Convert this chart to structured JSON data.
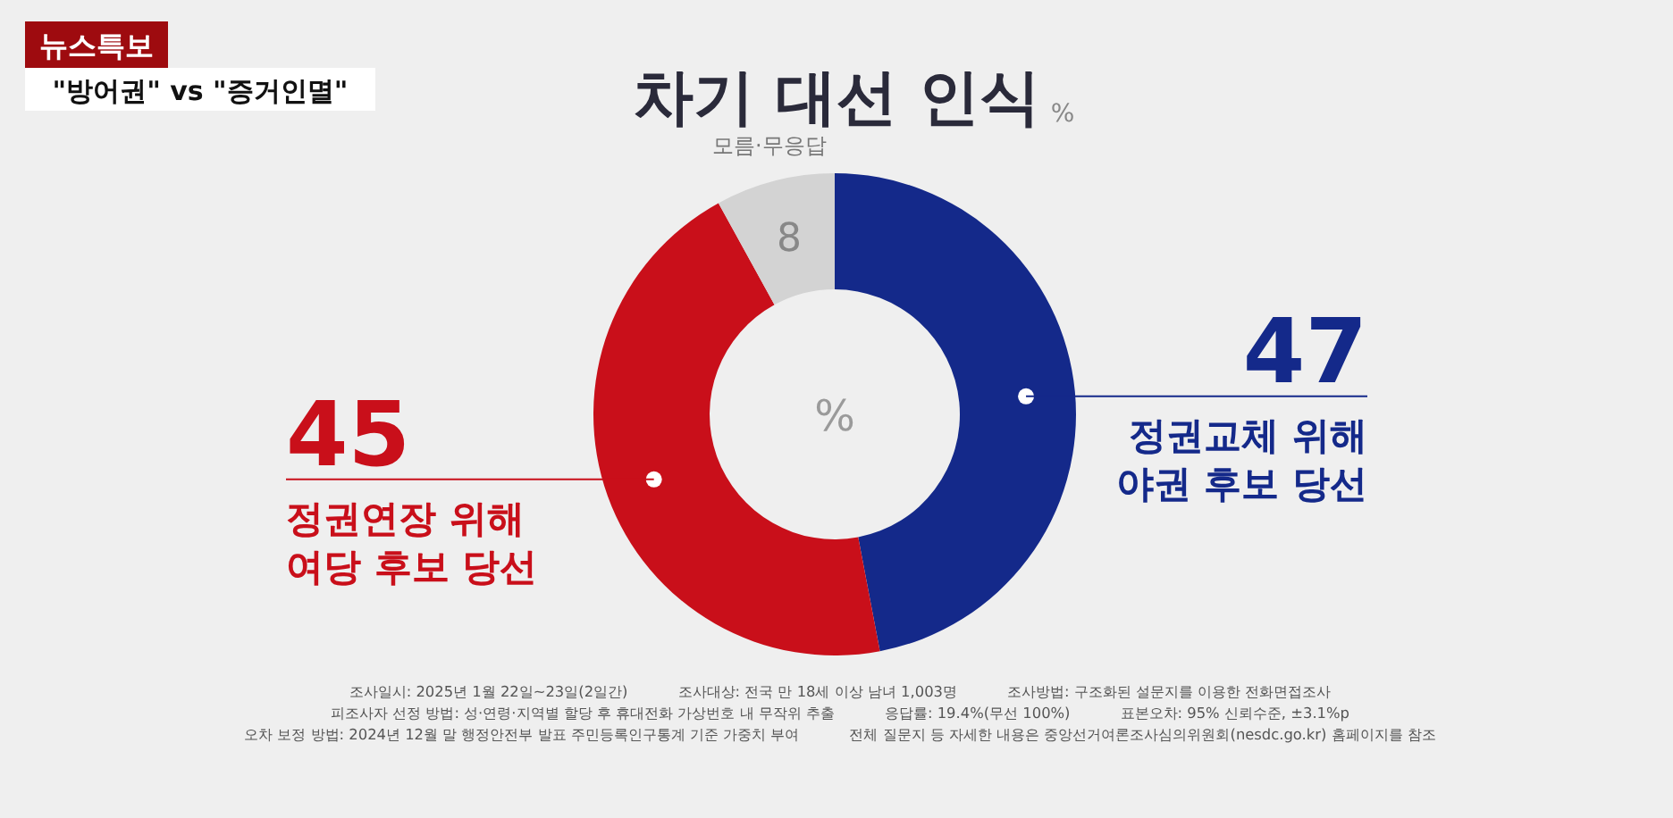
{
  "chart_data": {
    "type": "donut",
    "title": "차기 대선 인식",
    "subtitle": "%",
    "categories": [
      "정권교체 위해 야권 후보 당선",
      "정권연장 위해 여당 후보 당선",
      "모름·무응답"
    ],
    "values": [
      47,
      45,
      8
    ],
    "colors": [
      "#14298a",
      "#c90f1a",
      "#d3d3d3"
    ],
    "data_labels": true,
    "annotations": [
      "뉴스특보",
      "\"방어권\" vs \"증거인멸\"",
      "%",
      "조사일시: 2025년 1월 22일~23일(2일간)",
      "조사대상: 전국 만 18세 이상 남녀 1,003명",
      "조사방법: 구조화된 설문지를 이용한 전화면접조사",
      "피조사자 선정 방법: 성·연령·지역별 할당 후 휴대전화 가상번호 내 무작위 추출",
      "응답률: 19.4%(무선 100%)",
      "표본오차: 95% 신뢰수준, ±3.1%p",
      "오차 보정 방법: 2024년 12월 말 행정안전부 발표 주민등록인구통계 기준 가중치 부여",
      "전체 질문지 등 자세한 내용은 중앙선거여론조사심의위원회(nesdc.go.kr) 홈페이지를 참조"
    ]
  }
}
